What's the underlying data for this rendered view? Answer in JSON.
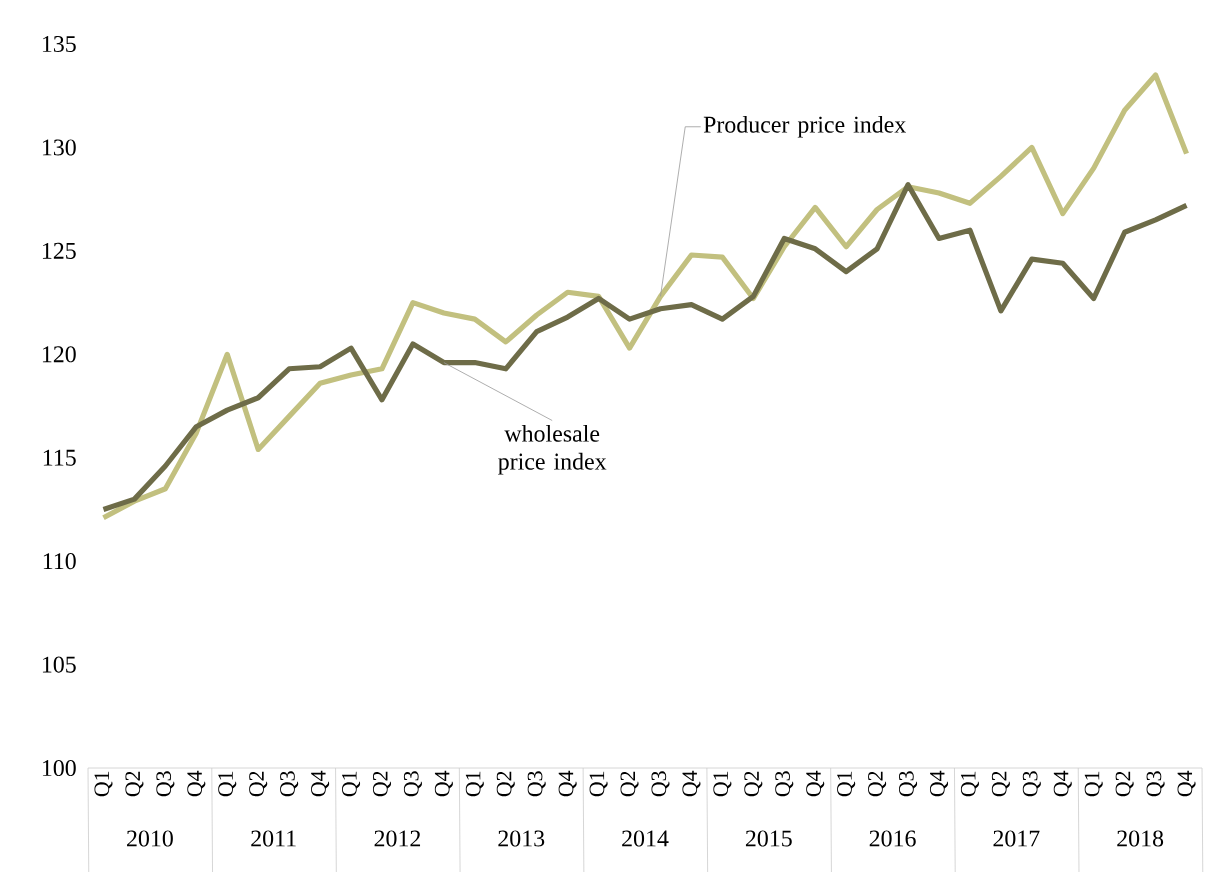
{
  "chart_data": {
    "type": "line",
    "categories": [
      "Q1",
      "Q2",
      "Q3",
      "Q4",
      "Q1",
      "Q2",
      "Q3",
      "Q4",
      "Q1",
      "Q2",
      "Q3",
      "Q4",
      "Q1",
      "Q2",
      "Q3",
      "Q4",
      "Q1",
      "Q2",
      "Q3",
      "Q4",
      "Q1",
      "Q2",
      "Q3",
      "Q4",
      "Q1",
      "Q2",
      "Q3",
      "Q4",
      "Q1",
      "Q2",
      "Q3",
      "Q4",
      "Q1",
      "Q2",
      "Q3",
      "Q4"
    ],
    "annotations": [
      "2010",
      "2011",
      "2012",
      "2013",
      "2014",
      "2015",
      "2016",
      "2017",
      "2018"
    ],
    "ylim": [
      100,
      135
    ],
    "yticks": [
      100,
      105,
      110,
      115,
      120,
      125,
      130,
      135
    ],
    "grid": false,
    "legend": false,
    "marker": "none",
    "line_style": "solid",
    "series": [
      {
        "name": "Producer price index",
        "color": "#c2c07f",
        "values": [
          112.1,
          112.9,
          113.5,
          116.2,
          120.0,
          115.4,
          117.0,
          118.6,
          119.0,
          119.3,
          122.5,
          122.0,
          121.7,
          120.6,
          121.9,
          123.0,
          122.8,
          120.3,
          122.8,
          124.8,
          124.7,
          122.7,
          125.2,
          127.1,
          125.2,
          127.0,
          128.1,
          127.8,
          127.3,
          128.6,
          130.0,
          126.8,
          129.0,
          131.8,
          133.5,
          129.7
        ]
      },
      {
        "name": "wholesale price index",
        "color": "#6e6c48",
        "values": [
          112.5,
          113.0,
          114.6,
          116.5,
          117.3,
          117.9,
          119.3,
          119.4,
          120.3,
          117.8,
          120.5,
          119.6,
          119.6,
          119.3,
          121.1,
          121.8,
          122.7,
          121.7,
          122.2,
          122.4,
          121.7,
          122.8,
          125.6,
          125.1,
          124.0,
          125.1,
          128.2,
          125.6,
          126.0,
          122.1,
          124.6,
          124.4,
          122.7,
          125.9,
          126.5,
          127.2
        ]
      }
    ]
  }
}
